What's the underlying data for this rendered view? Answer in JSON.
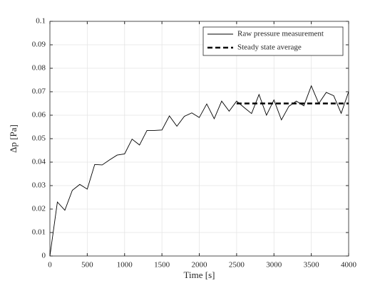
{
  "chart_data": {
    "type": "line",
    "xlabel": "Time [s]",
    "ylabel": "Δp [Pa]",
    "xlim": [
      0,
      4000
    ],
    "ylim": [
      0,
      0.1
    ],
    "xticks": [
      0,
      500,
      1000,
      1500,
      2000,
      2500,
      3000,
      3500,
      4000
    ],
    "yticks": [
      0,
      0.01,
      0.02,
      0.03,
      0.04,
      0.05,
      0.06,
      0.07,
      0.08,
      0.09,
      0.1
    ],
    "grid": true,
    "legend": "northeast",
    "series": [
      {
        "name": "Raw pressure measurement",
        "color": "#000000",
        "style": "solid",
        "x": [
          0,
          100,
          200,
          300,
          400,
          500,
          600,
          700,
          800,
          900,
          1000,
          1100,
          1200,
          1300,
          1400,
          1500,
          1600,
          1700,
          1800,
          1900,
          2000,
          2100,
          2200,
          2300,
          2400,
          2500,
          2600,
          2700,
          2800,
          2900,
          3000,
          3100,
          3200,
          3300,
          3400,
          3500,
          3600,
          3700,
          3800,
          3900,
          4000
        ],
        "values": [
          0,
          0.023,
          0.0195,
          0.028,
          0.0305,
          0.0285,
          0.039,
          0.0388,
          0.041,
          0.043,
          0.0435,
          0.0498,
          0.0473,
          0.0535,
          0.0535,
          0.0537,
          0.0597,
          0.0553,
          0.0595,
          0.061,
          0.059,
          0.0648,
          0.0585,
          0.066,
          0.0617,
          0.066,
          0.0633,
          0.0607,
          0.0688,
          0.06,
          0.0665,
          0.058,
          0.0638,
          0.066,
          0.064,
          0.0725,
          0.065,
          0.0697,
          0.0683,
          0.0608,
          0.07
        ]
      },
      {
        "name": "Steady state average",
        "color": "#000000",
        "style": "dashed",
        "x": [
          2500,
          4000
        ],
        "values": [
          0.065,
          0.065
        ]
      }
    ]
  }
}
